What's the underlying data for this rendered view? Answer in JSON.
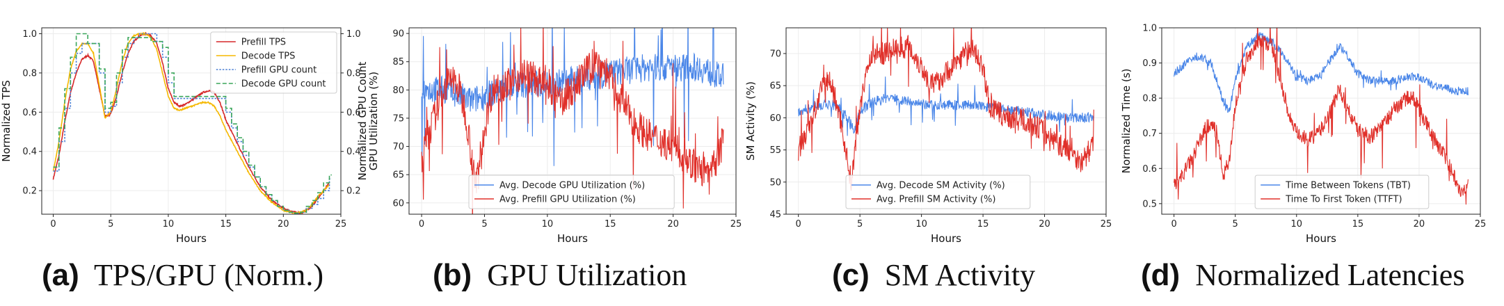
{
  "captions": [
    {
      "letter": "(a)",
      "text": "TPS/GPU (Norm.)"
    },
    {
      "letter": "(b)",
      "text": "GPU Utilization"
    },
    {
      "letter": "(c)",
      "text": "SM Activity"
    },
    {
      "letter": "(d)",
      "text": "Normalized Latencies"
    }
  ],
  "chart_data": [
    {
      "id": "a",
      "type": "line",
      "xlabel": "Hours",
      "ylabel": "Normalized TPS",
      "y2label": "Normalized GPU Count",
      "xlim": [
        -1,
        25
      ],
      "ylim": [
        0.08,
        1.03
      ],
      "xticks": [
        0,
        5,
        10,
        15,
        20,
        25
      ],
      "yticks": [
        0.2,
        0.4,
        0.6,
        0.8,
        1.0
      ],
      "ytick_labels": [
        "0.2",
        "0.4",
        "0.6",
        "0.8",
        "1.0"
      ],
      "y2ticks": [
        0.2,
        0.4,
        0.6,
        0.8,
        1.0
      ],
      "y2tick_labels": [
        "0.2",
        "0.4",
        "0.6",
        "0.8",
        "1.0"
      ],
      "legend": "top-right",
      "grid": true,
      "series": [
        {
          "name": "Prefill TPS",
          "color": "#d62728",
          "style": "solid",
          "noise": 0.004,
          "x": [
            0,
            0.5,
            1,
            1.5,
            2,
            2.5,
            3,
            3.5,
            4,
            4.5,
            5,
            5.5,
            6,
            6.5,
            7,
            7.5,
            8,
            8.5,
            9,
            9.5,
            10,
            10.5,
            11,
            11.5,
            12,
            12.5,
            13,
            13.5,
            14,
            14.5,
            15,
            16,
            17,
            18,
            19,
            20,
            21,
            21.5,
            22,
            22.5,
            23,
            23.5,
            24
          ],
          "y": [
            0.26,
            0.38,
            0.55,
            0.7,
            0.8,
            0.87,
            0.89,
            0.86,
            0.72,
            0.58,
            0.59,
            0.68,
            0.8,
            0.9,
            0.96,
            0.99,
            1.0,
            0.99,
            0.95,
            0.85,
            0.72,
            0.65,
            0.63,
            0.64,
            0.66,
            0.68,
            0.7,
            0.71,
            0.7,
            0.65,
            0.56,
            0.44,
            0.32,
            0.22,
            0.15,
            0.11,
            0.09,
            0.085,
            0.1,
            0.12,
            0.16,
            0.2,
            0.24
          ]
        },
        {
          "name": "Decode TPS",
          "color": "#f5b800",
          "style": "solid",
          "noise": 0.003,
          "x": [
            0,
            0.5,
            1,
            1.5,
            2,
            2.5,
            3,
            3.5,
            4,
            4.5,
            5,
            5.5,
            6,
            6.5,
            7,
            7.5,
            8,
            8.5,
            9,
            9.5,
            10,
            10.5,
            11,
            11.5,
            12,
            12.5,
            13,
            13.5,
            14,
            14.5,
            15,
            16,
            17,
            18,
            19,
            20,
            21,
            21.5,
            22,
            22.5,
            23,
            23.5,
            24
          ],
          "y": [
            0.3,
            0.45,
            0.65,
            0.82,
            0.91,
            0.95,
            0.95,
            0.9,
            0.74,
            0.57,
            0.6,
            0.72,
            0.86,
            0.95,
            0.99,
            1.0,
            1.0,
            0.98,
            0.92,
            0.8,
            0.68,
            0.62,
            0.61,
            0.62,
            0.63,
            0.64,
            0.65,
            0.65,
            0.63,
            0.58,
            0.51,
            0.4,
            0.29,
            0.2,
            0.14,
            0.1,
            0.085,
            0.09,
            0.1,
            0.13,
            0.17,
            0.2,
            0.23
          ]
        },
        {
          "name": "Prefill GPU count",
          "color": "#4a7fd4",
          "style": "dotted",
          "step": true,
          "x": [
            0,
            0.5,
            1,
            1.5,
            2,
            2.5,
            3,
            3.5,
            4,
            4.5,
            5,
            5.5,
            6,
            6.5,
            7,
            7.5,
            8,
            8.5,
            9,
            9.5,
            10,
            10.5,
            11,
            11.5,
            12,
            12.5,
            13,
            13.5,
            14,
            14.5,
            15,
            15.5,
            16,
            16.5,
            17,
            17.5,
            18,
            18.5,
            19,
            19.5,
            20,
            20.5,
            21,
            21.5,
            22,
            22.5,
            23,
            23.5,
            24
          ],
          "y": [
            0.3,
            0.45,
            0.62,
            0.8,
            0.9,
            0.95,
            0.95,
            0.95,
            0.8,
            0.6,
            0.63,
            0.75,
            0.88,
            0.95,
            0.98,
            1.0,
            1.0,
            1.0,
            0.96,
            0.88,
            0.75,
            0.67,
            0.67,
            0.67,
            0.67,
            0.67,
            0.67,
            0.67,
            0.67,
            0.67,
            0.6,
            0.52,
            0.45,
            0.38,
            0.32,
            0.27,
            0.22,
            0.18,
            0.15,
            0.12,
            0.1,
            0.09,
            0.085,
            0.09,
            0.11,
            0.13,
            0.16,
            0.2,
            0.26
          ]
        },
        {
          "name": "Decode GPU count",
          "color": "#3aa65a",
          "style": "dashed",
          "step": true,
          "x": [
            0,
            0.5,
            1,
            1.5,
            2,
            2.5,
            3,
            3.5,
            4,
            4.5,
            5,
            5.5,
            6,
            6.5,
            7,
            7.5,
            8,
            8.5,
            9,
            9.5,
            10,
            10.5,
            11,
            11.5,
            12,
            12.5,
            13,
            13.5,
            14,
            14.5,
            15,
            15.5,
            16,
            16.5,
            17,
            17.5,
            18,
            18.5,
            19,
            19.5,
            20,
            20.5,
            21,
            21.5,
            22,
            22.5,
            23,
            23.5,
            24
          ],
          "y": [
            0.32,
            0.52,
            0.72,
            0.88,
            1.0,
            1.0,
            0.95,
            0.95,
            0.82,
            0.62,
            0.65,
            0.8,
            0.92,
            0.98,
            0.98,
            0.98,
            0.98,
            0.96,
            0.96,
            0.93,
            0.8,
            0.68,
            0.68,
            0.68,
            0.68,
            0.68,
            0.68,
            0.68,
            0.68,
            0.68,
            0.62,
            0.54,
            0.47,
            0.4,
            0.33,
            0.27,
            0.22,
            0.18,
            0.15,
            0.12,
            0.1,
            0.09,
            0.085,
            0.09,
            0.12,
            0.15,
            0.19,
            0.24,
            0.28
          ]
        }
      ]
    },
    {
      "id": "b",
      "type": "line",
      "xlabel": "Hours",
      "ylabel": "GPU Utilization (%)",
      "xlim": [
        -1,
        25
      ],
      "ylim": [
        58,
        91
      ],
      "xticks": [
        0,
        5,
        10,
        15,
        20,
        25
      ],
      "yticks": [
        60,
        65,
        70,
        75,
        80,
        85,
        90
      ],
      "ytick_labels": [
        "60",
        "65",
        "70",
        "75",
        "80",
        "85",
        "90"
      ],
      "legend": "bottom-left",
      "grid": true,
      "series": [
        {
          "name": "Avg. Decode GPU Utilization (%)",
          "color": "#4a86e8",
          "style": "solid",
          "noise": 2.5,
          "spikes": 6,
          "x": [
            0,
            2,
            4,
            5,
            8,
            10,
            13,
            15,
            18,
            20,
            22,
            24
          ],
          "y": [
            80,
            80,
            78,
            79,
            81,
            81,
            82,
            83,
            84,
            84,
            84,
            82
          ]
        },
        {
          "name": "Avg. Prefill GPU Utilization (%)",
          "color": "#e0302a",
          "style": "solid",
          "noise": 3,
          "spikes": 4,
          "x": [
            0,
            0.5,
            1,
            1.5,
            2,
            2.5,
            3,
            3.5,
            4,
            4.3,
            4.6,
            5,
            5.5,
            6,
            7,
            8,
            9,
            10,
            11,
            12,
            13,
            14,
            14.5,
            15,
            16,
            17,
            18,
            19,
            20,
            21,
            22,
            23,
            24
          ],
          "y": [
            68,
            72,
            75,
            79,
            81,
            82,
            80,
            76,
            68,
            63,
            66,
            73,
            79,
            81,
            81,
            83,
            82,
            80,
            78,
            80,
            83,
            85,
            84,
            82,
            78,
            74,
            72,
            71,
            70,
            68,
            66,
            65,
            71
          ]
        }
      ]
    },
    {
      "id": "c",
      "type": "line",
      "xlabel": "Hours",
      "ylabel": "SM Activity (%)",
      "xlim": [
        -1,
        25
      ],
      "ylim": [
        45,
        74
      ],
      "xticks": [
        0,
        5,
        10,
        15,
        20,
        25
      ],
      "yticks": [
        45,
        50,
        55,
        60,
        65,
        70
      ],
      "ytick_labels": [
        "45",
        "50",
        "55",
        "60",
        "65",
        "70"
      ],
      "legend": "bottom-left",
      "grid": true,
      "series": [
        {
          "name": "Avg. Decode SM Activity (%)",
          "color": "#4a86e8",
          "style": "solid",
          "noise": 0.8,
          "spikes": 4,
          "x": [
            0,
            1,
            2,
            3,
            4,
            4.5,
            5,
            6,
            7,
            8,
            9,
            10,
            11,
            12,
            14,
            16,
            18,
            20,
            22,
            24
          ],
          "y": [
            61,
            61.5,
            62,
            62,
            60,
            58,
            61,
            62.5,
            63,
            63,
            62.5,
            62,
            62,
            62,
            62,
            61.5,
            61,
            60.5,
            60,
            60
          ]
        },
        {
          "name": "Avg. Prefill SM Activity (%)",
          "color": "#e0302a",
          "style": "solid",
          "noise": 1.8,
          "spikes": 3,
          "x": [
            0,
            0.5,
            1,
            1.5,
            2,
            2.5,
            3,
            3.5,
            4,
            4.3,
            4.6,
            5,
            5.5,
            6,
            7,
            8,
            9,
            10,
            10.5,
            11,
            12,
            13,
            14,
            15,
            15.5,
            16,
            17,
            18,
            19,
            20,
            21,
            22,
            23,
            24
          ],
          "y": [
            55,
            57,
            59,
            62,
            65,
            66,
            63,
            59,
            53,
            50,
            55,
            62,
            67,
            70,
            70,
            71,
            71,
            68,
            66,
            65,
            67,
            69,
            71,
            68,
            62,
            61,
            60,
            60,
            59,
            58,
            56,
            55,
            53,
            56
          ]
        }
      ]
    },
    {
      "id": "d",
      "type": "line",
      "xlabel": "Hours",
      "ylabel": "Normalized Time (s)",
      "xlim": [
        -1,
        25
      ],
      "ylim": [
        0.47,
        1.0
      ],
      "xticks": [
        0,
        5,
        10,
        15,
        20,
        25
      ],
      "yticks": [
        0.5,
        0.6,
        0.7,
        0.8,
        0.9,
        1.0
      ],
      "ytick_labels": [
        "0.5",
        "0.6",
        "0.7",
        "0.8",
        "0.9",
        "1.0"
      ],
      "legend": "bottom-center",
      "grid": true,
      "series": [
        {
          "name": "Time Between Tokens (TBT)",
          "color": "#4a86e8",
          "style": "solid",
          "noise": 0.012,
          "spikes": 2,
          "x": [
            0,
            1,
            2,
            3,
            3.5,
            4,
            4.5,
            5,
            6,
            7,
            8,
            9,
            10,
            11,
            12,
            13,
            13.5,
            14,
            15,
            16,
            17,
            18,
            19,
            20,
            21,
            22,
            23,
            24
          ],
          "y": [
            0.87,
            0.9,
            0.92,
            0.9,
            0.85,
            0.79,
            0.76,
            0.85,
            0.95,
            0.98,
            0.96,
            0.92,
            0.86,
            0.85,
            0.87,
            0.92,
            0.95,
            0.93,
            0.87,
            0.85,
            0.85,
            0.85,
            0.86,
            0.86,
            0.84,
            0.83,
            0.82,
            0.82
          ]
        },
        {
          "name": "Time To First Token (TTFT)",
          "color": "#e0302a",
          "style": "solid",
          "noise": 0.022,
          "spikes": 6,
          "x": [
            0,
            0.5,
            1,
            1.5,
            2,
            2.5,
            3,
            3.5,
            4,
            4.5,
            5,
            5.5,
            6,
            7,
            8,
            8.5,
            9,
            9.5,
            10,
            11,
            12,
            13,
            13.5,
            14,
            15,
            16,
            17,
            18,
            19,
            19.5,
            20,
            21,
            22,
            23,
            23.5,
            24
          ],
          "y": [
            0.55,
            0.57,
            0.6,
            0.63,
            0.67,
            0.71,
            0.73,
            0.7,
            0.58,
            0.62,
            0.78,
            0.85,
            0.92,
            0.96,
            0.95,
            0.88,
            0.8,
            0.74,
            0.7,
            0.68,
            0.71,
            0.78,
            0.83,
            0.78,
            0.71,
            0.69,
            0.72,
            0.77,
            0.8,
            0.8,
            0.77,
            0.7,
            0.64,
            0.57,
            0.53,
            0.55
          ]
        }
      ]
    }
  ]
}
